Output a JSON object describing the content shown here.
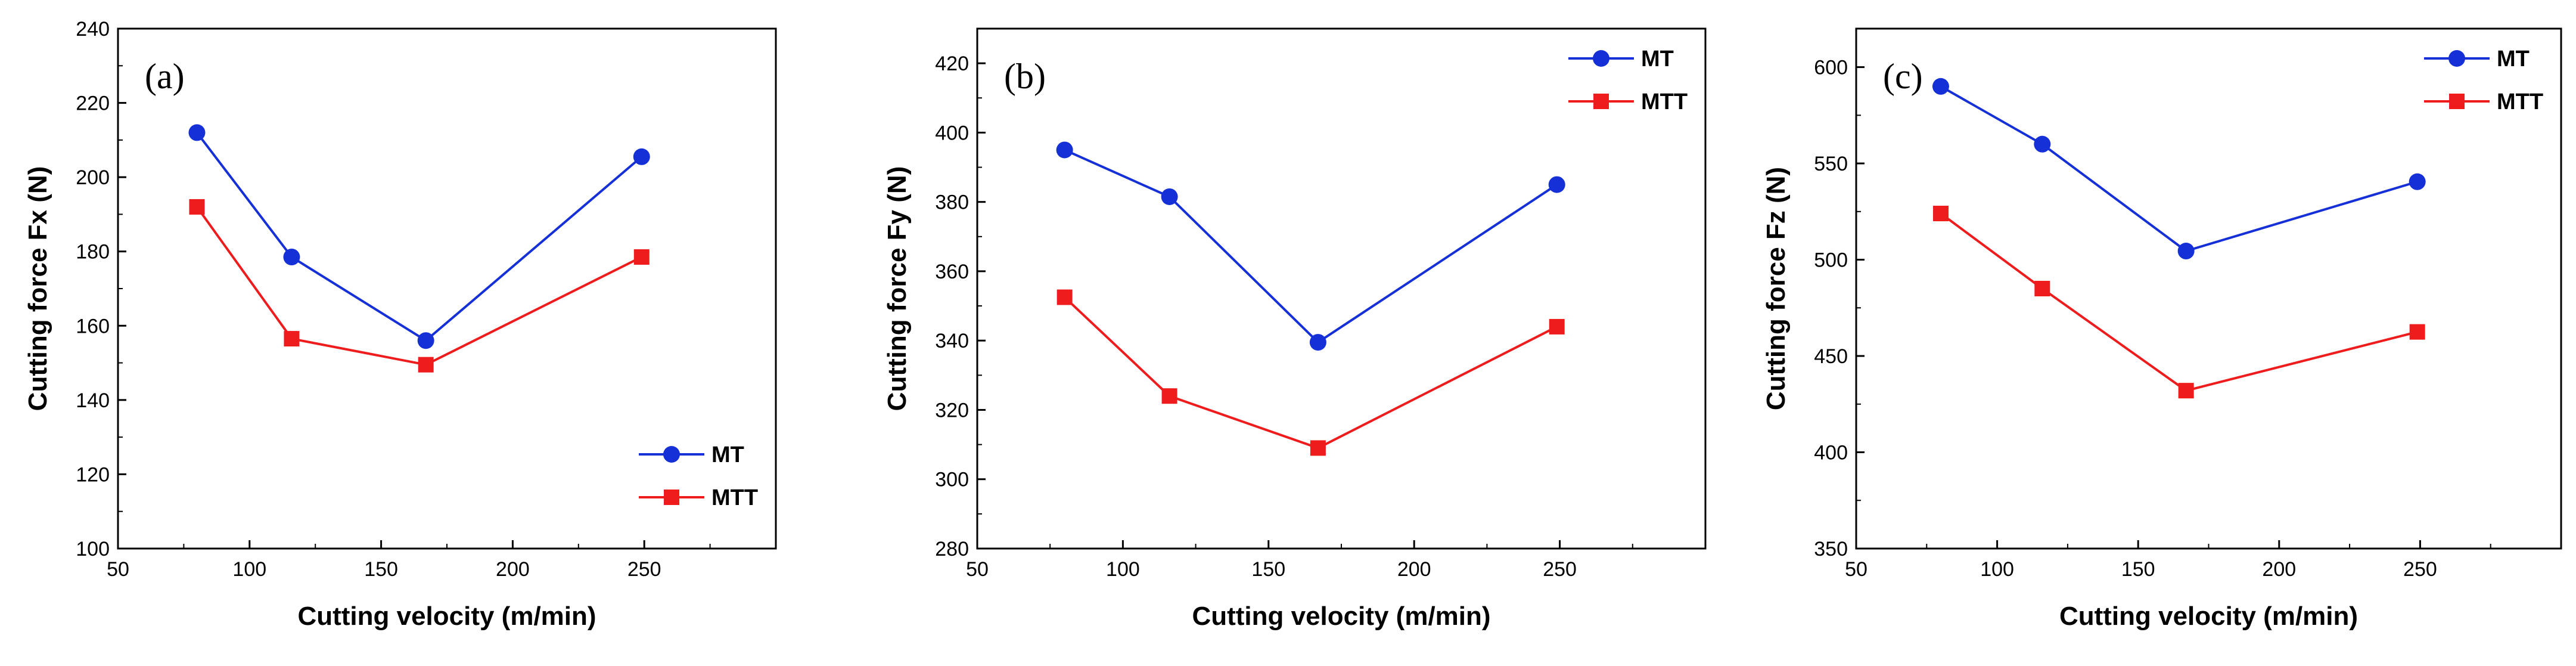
{
  "chart_data": [
    {
      "type": "line",
      "panel_label": "(a)",
      "xlabel": "Cutting velocity (m/min)",
      "ylabel": "Cutting force Fx (N)",
      "xlim": [
        50,
        300
      ],
      "ylim": [
        100,
        240
      ],
      "xticks": [
        50,
        100,
        150,
        200,
        250
      ],
      "yticks": [
        100,
        120,
        140,
        160,
        180,
        200,
        220,
        240
      ],
      "grid": false,
      "legend_position": "bottom-right",
      "x": [
        80,
        116,
        167,
        249
      ],
      "series": [
        {
          "name": "MT",
          "marker": "circle",
          "color": "#1530d6",
          "values": [
            212,
            178.5,
            156,
            205.5
          ]
        },
        {
          "name": "MTT",
          "marker": "square",
          "color": "#ee1c1c",
          "values": [
            192,
            156.5,
            149.5,
            178.5
          ]
        }
      ]
    },
    {
      "type": "line",
      "panel_label": "(b)",
      "xlabel": "Cutting velocity (m/min)",
      "ylabel": "Cutting force Fy (N)",
      "xlim": [
        50,
        300
      ],
      "ylim": [
        280,
        430
      ],
      "xticks": [
        50,
        100,
        150,
        200,
        250
      ],
      "yticks": [
        280,
        300,
        320,
        340,
        360,
        380,
        400,
        420
      ],
      "grid": false,
      "legend_position": "top-right",
      "x": [
        80,
        116,
        167,
        249
      ],
      "series": [
        {
          "name": "MT",
          "marker": "circle",
          "color": "#1530d6",
          "values": [
            395,
            381.5,
            339.5,
            385
          ]
        },
        {
          "name": "MTT",
          "marker": "square",
          "color": "#ee1c1c",
          "values": [
            352.5,
            324,
            309,
            344
          ]
        }
      ]
    },
    {
      "type": "line",
      "panel_label": "(c)",
      "xlabel": "Cutting velocity (m/min)",
      "ylabel": "Cutting force Fz (N)",
      "xlim": [
        50,
        300
      ],
      "ylim": [
        350,
        620
      ],
      "xticks": [
        50,
        100,
        150,
        200,
        250
      ],
      "yticks": [
        350,
        400,
        450,
        500,
        550,
        600
      ],
      "grid": false,
      "legend_position": "top-right",
      "x": [
        80,
        116,
        167,
        249
      ],
      "series": [
        {
          "name": "MT",
          "marker": "circle",
          "color": "#1530d6",
          "values": [
            590,
            560,
            504.5,
            540.5
          ]
        },
        {
          "name": "MTT",
          "marker": "square",
          "color": "#ee1c1c",
          "values": [
            524,
            485,
            432,
            462.5
          ]
        }
      ]
    }
  ]
}
